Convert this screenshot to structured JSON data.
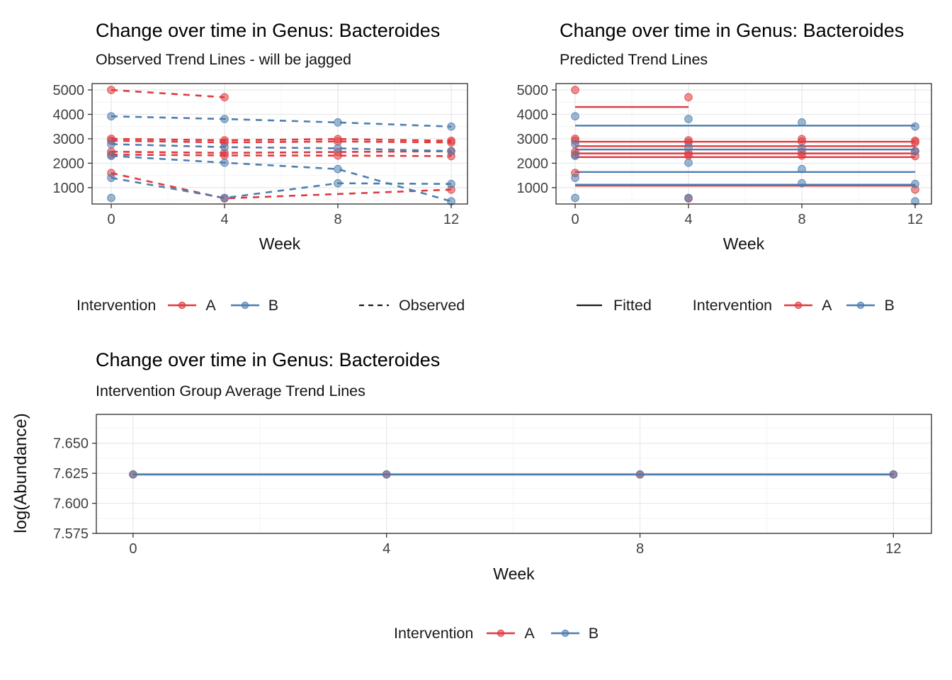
{
  "colors": {
    "A": "#E0393E",
    "B": "#4D7EAF",
    "grid_major": "#E7E7E7",
    "grid_minor": "#F4F4F4",
    "axis_text": "#404040",
    "panel_border": "#2B2B2B",
    "neutral_key": "#1A1A1A"
  },
  "legends": {
    "intervention_title": "Intervention",
    "group_a_label": "A",
    "group_b_label": "B",
    "observed_label": "Observed",
    "fitted_label": "Fitted"
  },
  "chart_data": [
    {
      "id": "observed",
      "type": "line",
      "title": "Change over time in Genus: Bacteroides",
      "subtitle": "Observed Trend Lines - will be jagged",
      "xlabel": "Week",
      "ylabel": "",
      "legend_position": "bottom",
      "grid": true,
      "dashed": true,
      "x_ticks": [
        0,
        4,
        8,
        12
      ],
      "x_minor": [
        2,
        6,
        10
      ],
      "y_ticks": [
        1000,
        2000,
        3000,
        4000,
        5000
      ],
      "y_minor": [
        500,
        1500,
        2500,
        3500,
        4500
      ],
      "xlim": [
        -0.675,
        12.575
      ],
      "ylim": [
        330,
        5260
      ],
      "series": [
        {
          "id": "A1",
          "group": "A",
          "weeks": [
            0,
            4,
            8,
            12
          ],
          "values": [
            5000,
            4700,
            null,
            null
          ]
        },
        {
          "id": "A2",
          "group": "A",
          "weeks": [
            0,
            4,
            8,
            12
          ],
          "values": [
            3000,
            2940,
            2990,
            2920
          ]
        },
        {
          "id": "A3",
          "group": "A",
          "weeks": [
            0,
            4,
            8,
            12
          ],
          "values": [
            2920,
            2850,
            2890,
            2850
          ]
        },
        {
          "id": "A4",
          "group": "A",
          "weeks": [
            0,
            4,
            8,
            12
          ],
          "values": [
            2470,
            2420,
            2460,
            2490
          ]
        },
        {
          "id": "A5",
          "group": "A",
          "weeks": [
            0,
            4,
            8,
            12
          ],
          "values": [
            2350,
            2320,
            2310,
            2290
          ]
        },
        {
          "id": "A6",
          "group": "A",
          "weeks": [
            0,
            4,
            8,
            12
          ],
          "values": [
            1600,
            560,
            null,
            920
          ]
        },
        {
          "id": "B1",
          "group": "B",
          "weeks": [
            0,
            4,
            8,
            12
          ],
          "values": [
            3920,
            3810,
            3670,
            3500
          ]
        },
        {
          "id": "B2",
          "group": "B",
          "weeks": [
            0,
            4,
            8,
            12
          ],
          "values": [
            2780,
            2660,
            2610,
            2500
          ]
        },
        {
          "id": "B3",
          "group": "B",
          "weeks": [
            0,
            4,
            8,
            12
          ],
          "values": [
            2300,
            2020,
            1760,
            440
          ]
        },
        {
          "id": "B4",
          "group": "B",
          "weeks": [
            0,
            4,
            8,
            12
          ],
          "values": [
            1400,
            580,
            1180,
            1150
          ]
        },
        {
          "id": "B5",
          "group": "B",
          "weeks": [
            0,
            4,
            8,
            12
          ],
          "values": [
            580,
            null,
            null,
            null
          ]
        }
      ]
    },
    {
      "id": "predicted",
      "type": "line",
      "title": "Change over time in Genus: Bacteroides",
      "subtitle": "Predicted Trend Lines",
      "xlabel": "Week",
      "ylabel": "",
      "grid": true,
      "dashed": false,
      "show_lines": false,
      "x_ticks": [
        0,
        4,
        8,
        12
      ],
      "x_minor": [
        2,
        6,
        10
      ],
      "y_ticks": [
        1000,
        2000,
        3000,
        4000,
        5000
      ],
      "y_minor": [
        500,
        1500,
        2500,
        3500,
        4500
      ],
      "xlim": [
        -0.675,
        12.575
      ],
      "ylim": [
        330,
        5260
      ],
      "fitted": [
        {
          "group": "A",
          "y": 4300,
          "x": [
            0,
            4
          ]
        },
        {
          "group": "A",
          "y": 2880,
          "x": [
            0,
            12
          ]
        },
        {
          "group": "A",
          "y": 2700,
          "x": [
            0,
            12
          ]
        },
        {
          "group": "A",
          "y": 2400,
          "x": [
            0,
            12
          ]
        },
        {
          "group": "A",
          "y": 2250,
          "x": [
            0,
            12
          ]
        },
        {
          "group": "A",
          "y": 1080,
          "x": [
            0,
            12
          ]
        },
        {
          "group": "B",
          "y": 3540,
          "x": [
            0,
            12
          ]
        },
        {
          "group": "B",
          "y": 2560,
          "x": [
            0,
            12
          ]
        },
        {
          "group": "B",
          "y": 1640,
          "x": [
            0,
            12
          ]
        },
        {
          "group": "B",
          "y": 1120,
          "x": [
            0,
            12
          ]
        }
      ],
      "series": [
        {
          "id": "A1",
          "group": "A",
          "weeks": [
            0,
            4,
            8,
            12
          ],
          "values": [
            5000,
            4700,
            null,
            null
          ]
        },
        {
          "id": "A2",
          "group": "A",
          "weeks": [
            0,
            4,
            8,
            12
          ],
          "values": [
            3000,
            2940,
            2990,
            2920
          ]
        },
        {
          "id": "A3",
          "group": "A",
          "weeks": [
            0,
            4,
            8,
            12
          ],
          "values": [
            2920,
            2850,
            2890,
            2850
          ]
        },
        {
          "id": "A4",
          "group": "A",
          "weeks": [
            0,
            4,
            8,
            12
          ],
          "values": [
            2470,
            2420,
            2460,
            2490
          ]
        },
        {
          "id": "A5",
          "group": "A",
          "weeks": [
            0,
            4,
            8,
            12
          ],
          "values": [
            2350,
            2320,
            2310,
            2290
          ]
        },
        {
          "id": "A6",
          "group": "A",
          "weeks": [
            0,
            4,
            8,
            12
          ],
          "values": [
            1600,
            560,
            null,
            920
          ]
        },
        {
          "id": "B1",
          "group": "B",
          "weeks": [
            0,
            4,
            8,
            12
          ],
          "values": [
            3920,
            3810,
            3670,
            3500
          ]
        },
        {
          "id": "B2",
          "group": "B",
          "weeks": [
            0,
            4,
            8,
            12
          ],
          "values": [
            2780,
            2660,
            2610,
            2500
          ]
        },
        {
          "id": "B3",
          "group": "B",
          "weeks": [
            0,
            4,
            8,
            12
          ],
          "values": [
            2300,
            2020,
            1760,
            440
          ]
        },
        {
          "id": "B4",
          "group": "B",
          "weeks": [
            0,
            4,
            8,
            12
          ],
          "values": [
            1400,
            580,
            1180,
            1150
          ]
        },
        {
          "id": "B5",
          "group": "B",
          "weeks": [
            0,
            4,
            8,
            12
          ],
          "values": [
            580,
            null,
            null,
            null
          ]
        }
      ]
    },
    {
      "id": "average",
      "type": "line",
      "title": "Change over time in Genus: Bacteroides",
      "subtitle": "Intervention Group Average Trend Lines",
      "xlabel": "Week",
      "ylabel": "log(Abundance)",
      "grid": true,
      "dashed": false,
      "x_ticks": [
        0,
        4,
        8,
        12
      ],
      "x_minor": [
        2,
        6,
        10
      ],
      "y_ticks": [
        "7.650",
        "7.625",
        "7.600",
        "7.575"
      ],
      "y_minor": [
        7.5875,
        7.6125,
        7.6375,
        7.6625
      ],
      "xlim": [
        -0.58,
        12.6
      ],
      "ylim": [
        7.575,
        7.674
      ],
      "series": [
        {
          "id": "A-mean",
          "group": "A",
          "weeks": [
            0,
            4,
            8,
            12
          ],
          "values": [
            7.624,
            7.624,
            7.624,
            7.624
          ]
        },
        {
          "id": "B-mean",
          "group": "B",
          "weeks": [
            0,
            4,
            8,
            12
          ],
          "values": [
            7.624,
            7.624,
            7.624,
            7.624
          ]
        }
      ]
    }
  ]
}
